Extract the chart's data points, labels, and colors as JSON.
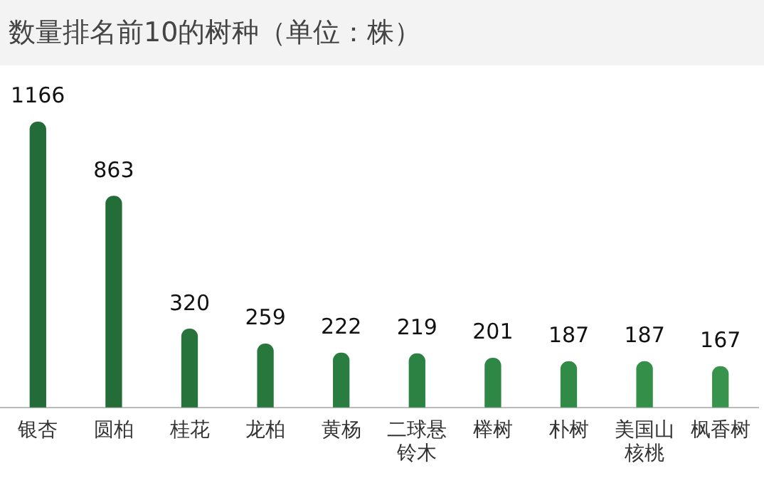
{
  "chart_data": {
    "type": "bar",
    "title": "数量排名前10的树种（单位：株）",
    "categories": [
      "银杏",
      "圆柏",
      "桂花",
      "龙柏",
      "黄杨",
      "二球悬铃木",
      "榉树",
      "朴树",
      "美国山核桃",
      "枫香树"
    ],
    "values": [
      1166,
      863,
      320,
      259,
      222,
      219,
      201,
      187,
      187,
      167
    ],
    "colors": [
      "#236b38",
      "#246d39",
      "#26733b",
      "#28783d",
      "#2a7d40",
      "#2c8242",
      "#2e8744",
      "#318b46",
      "#348f49",
      "#38944c"
    ],
    "data_labels": true,
    "grid": false,
    "legend": false
  }
}
